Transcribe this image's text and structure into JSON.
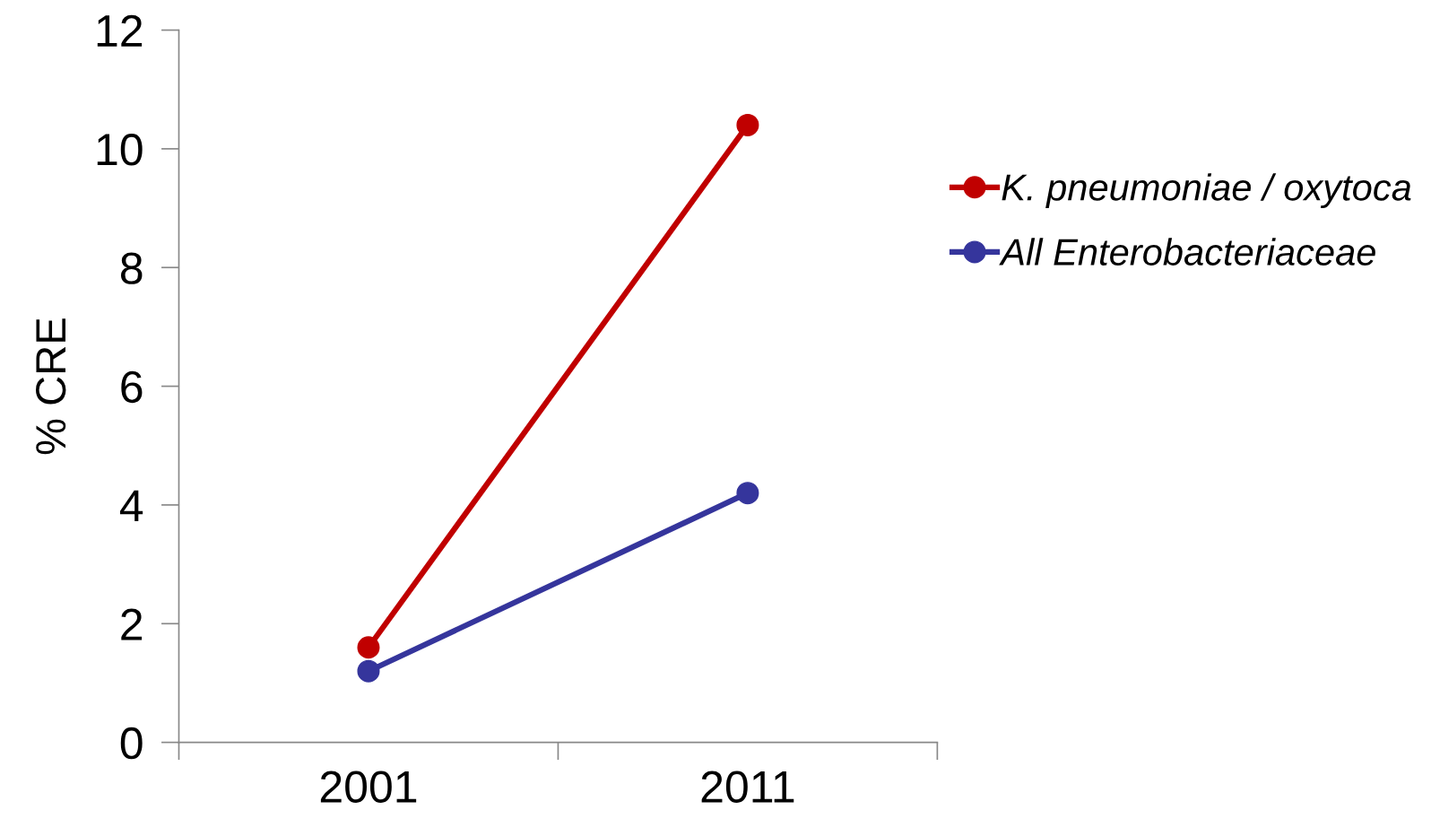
{
  "chart_data": {
    "type": "line",
    "ylabel": "% CRE",
    "categories": [
      "2001",
      "2011"
    ],
    "series": [
      {
        "name": "K. pneumoniae / oxytoca",
        "color": "#c00000",
        "values": [
          1.6,
          10.4
        ]
      },
      {
        "name": "All Enterobacteriaceae",
        "color": "#35359c",
        "values": [
          1.2,
          4.2
        ]
      }
    ],
    "ylim": [
      0,
      12
    ],
    "yticks": [
      0,
      2,
      4,
      6,
      8,
      10,
      12
    ],
    "grid": false,
    "legend": "right",
    "marker": "circle",
    "line_style": "solid"
  }
}
